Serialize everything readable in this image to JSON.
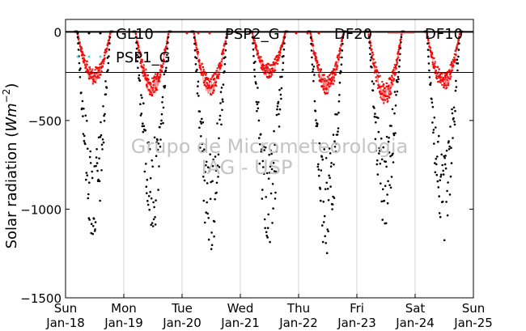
{
  "chart_data": {
    "type": "scatter",
    "ylabel": "Solar radiation",
    "ylabel_unit_base": "Wm",
    "ylabel_unit_exp": "−2",
    "ylim": [
      -1500,
      70
    ],
    "yticks": [
      0,
      -500,
      -1000,
      -1500
    ],
    "ytick_labels": [
      "0",
      "−500",
      "−1000",
      "−1500"
    ],
    "xlim": [
      0,
      7
    ],
    "xticks": [
      {
        "day": "Sun",
        "date": "Jan-18"
      },
      {
        "day": "Mon",
        "date": "Jan-19"
      },
      {
        "day": "Tue",
        "date": "Jan-20"
      },
      {
        "day": "Wed",
        "date": "Jan-21"
      },
      {
        "day": "Thu",
        "date": "Jan-22"
      },
      {
        "day": "Fri",
        "date": "Jan-23"
      },
      {
        "day": "Sat",
        "date": "Jan-24"
      },
      {
        "day": "Sun",
        "date": "Jan-25"
      }
    ],
    "grid": "vertical",
    "legend_position": "top",
    "watermark": [
      "Grupo de Micrometeorologia",
      "IAG - USP"
    ],
    "series": [
      {
        "name": "GL10",
        "style": "dots",
        "color": "#000000"
      },
      {
        "name": "PSP2_G",
        "style": "dots",
        "color": "#e41a1c"
      },
      {
        "name": "DF20",
        "style": "dots",
        "color": "#ff0000"
      },
      {
        "name": "DF10",
        "style": "line",
        "color": "#ff8080"
      },
      {
        "name": "PSP1_G",
        "style": "dots",
        "color": "#40e0d0"
      }
    ],
    "days": [
      {
        "day": "Jan-18",
        "sunrise": 0.2,
        "sunset": 0.77,
        "gl_peak": -1170,
        "df_peak": -270
      },
      {
        "day": "Jan-19",
        "sunrise": 0.2,
        "sunset": 0.77,
        "gl_peak": -1100,
        "df_peak": -330
      },
      {
        "day": "Jan-20",
        "sunrise": 0.2,
        "sunset": 0.77,
        "gl_peak": -1210,
        "df_peak": -330
      },
      {
        "day": "Jan-21",
        "sunrise": 0.2,
        "sunset": 0.77,
        "gl_peak": -1160,
        "df_peak": -240
      },
      {
        "day": "Jan-22",
        "sunrise": 0.2,
        "sunset": 0.77,
        "gl_peak": -1220,
        "df_peak": -320
      },
      {
        "day": "Jan-23",
        "sunrise": 0.2,
        "sunset": 0.77,
        "gl_peak": -1060,
        "df_peak": -370
      },
      {
        "day": "Jan-24",
        "sunrise": 0.2,
        "sunset": 0.77,
        "gl_peak": -1180,
        "df_peak": -300
      }
    ]
  }
}
